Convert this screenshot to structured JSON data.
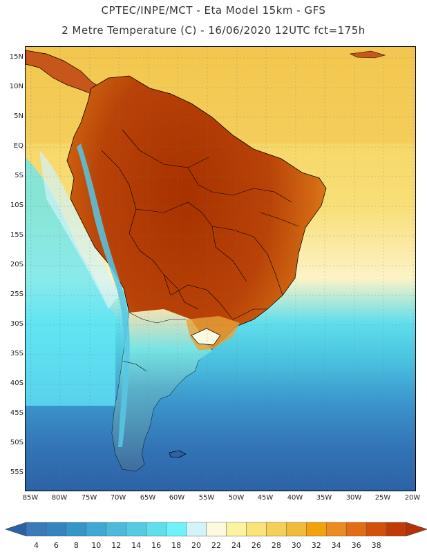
{
  "title_line1": "CPTEC/INPE/MCT -  Eta Model 15km - GFS",
  "title_line2": "2 Metre Temperature (C) - 16/06/2020 12UTC fct=175h",
  "map": {
    "region": "South America",
    "lat_labels": [
      "15N",
      "10N",
      "5N",
      "EQ",
      "5S",
      "10S",
      "15S",
      "20S",
      "25S",
      "30S",
      "35S",
      "40S",
      "45S",
      "50S",
      "55S"
    ],
    "lon_labels": [
      "85W",
      "80W",
      "75W",
      "70W",
      "65W",
      "60W",
      "55W",
      "50W",
      "45W",
      "40W",
      "35W",
      "30W",
      "25W",
      "20W"
    ],
    "colors": {
      "ocean_south_deep": "#2b62a5",
      "ocean_south": "#3a85c2",
      "ocean_mid": "#4bc4e0",
      "ocean_cold_current": "#63e7f5",
      "ocean_warm": "#f4cc52",
      "ocean_tropical": "#f2c04a",
      "land_hot": "#a83200",
      "land_warm": "#d36b12",
      "patagonia": "#3a7ec0",
      "andes": "#57c8e4"
    }
  },
  "colorbar": {
    "labels": [
      "4",
      "6",
      "8",
      "10",
      "12",
      "14",
      "16",
      "18",
      "20",
      "22",
      "24",
      "26",
      "28",
      "30",
      "32",
      "34",
      "36",
      "38"
    ],
    "colors": [
      "#3a7ab8",
      "#3484bd",
      "#3696c7",
      "#40a8d2",
      "#4cbada",
      "#55cbe2",
      "#5fdeec",
      "#6ef3fb",
      "#d2f3fa",
      "#fdf8e0",
      "#fbf3a0",
      "#f9e37a",
      "#f4d057",
      "#efbb38",
      "#f3a30a",
      "#eb8c21",
      "#e36d15",
      "#d2510a",
      "#c13b08"
    ],
    "end_colors": {
      "low": "#2b62a5",
      "high": "#b53208"
    }
  }
}
